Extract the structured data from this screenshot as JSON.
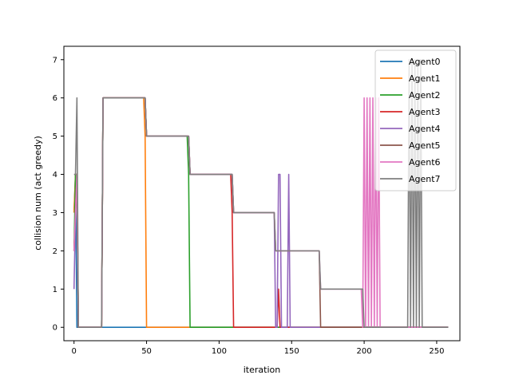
{
  "chart_data": {
    "type": "line",
    "title": "",
    "xlabel": "iteration",
    "ylabel": "collision num (act greedy)",
    "xlim": [
      -7,
      266
    ],
    "ylim": [
      -0.35,
      7.35
    ],
    "xticks": [
      0,
      50,
      100,
      150,
      200,
      250
    ],
    "yticks": [
      0,
      1,
      2,
      3,
      4,
      5,
      6,
      7
    ],
    "grid": false,
    "legend_position": "upper-right",
    "series": [
      {
        "name": "Agent0",
        "color": "#1f77b4",
        "x": [
          0,
          1,
          2,
          3,
          4,
          5,
          19,
          20,
          21,
          258
        ],
        "y": [
          3,
          4,
          0,
          0,
          0,
          0,
          0,
          0,
          0,
          0
        ]
      },
      {
        "name": "Agent1",
        "color": "#ff7f0e",
        "x": [
          0,
          1,
          2,
          3,
          4,
          19,
          20,
          48,
          49,
          50,
          51,
          258
        ],
        "y": [
          3,
          4,
          4,
          0,
          0,
          0,
          6,
          6,
          5,
          0,
          0,
          0
        ]
      },
      {
        "name": "Agent2",
        "color": "#2ca02c",
        "x": [
          0,
          1,
          2,
          3,
          4,
          19,
          20,
          48,
          49,
          50,
          78,
          79,
          80,
          81,
          258
        ],
        "y": [
          2,
          4,
          4,
          0,
          0,
          0,
          6,
          6,
          6,
          5,
          5,
          4,
          0,
          0,
          0
        ]
      },
      {
        "name": "Agent3",
        "color": "#d62728",
        "x": [
          0,
          1,
          2,
          3,
          4,
          19,
          20,
          48,
          49,
          50,
          78,
          79,
          80,
          108,
          109,
          110,
          111,
          139,
          140,
          141,
          142,
          143,
          258
        ],
        "y": [
          2,
          3,
          4,
          0,
          0,
          0,
          6,
          6,
          6,
          5,
          5,
          5,
          4,
          4,
          3,
          0,
          0,
          0,
          0,
          1,
          0,
          0,
          0
        ]
      },
      {
        "name": "Agent4",
        "color": "#9467bd",
        "x": [
          0,
          1,
          2,
          3,
          4,
          19,
          20,
          48,
          49,
          50,
          78,
          79,
          80,
          108,
          109,
          110,
          138,
          139,
          140,
          141,
          142,
          143,
          144,
          145,
          146,
          147,
          148,
          149,
          150,
          258
        ],
        "y": [
          1,
          3,
          4,
          0,
          0,
          0,
          6,
          6,
          6,
          5,
          5,
          5,
          4,
          4,
          4,
          3,
          3,
          0,
          0,
          4,
          4,
          0,
          0,
          0,
          0,
          0,
          4,
          0,
          0,
          0
        ]
      },
      {
        "name": "Agent5",
        "color": "#8c564b",
        "x": [
          0,
          1,
          2,
          3,
          4,
          19,
          20,
          48,
          49,
          50,
          78,
          79,
          80,
          108,
          109,
          110,
          138,
          139,
          140,
          141,
          142,
          143,
          145,
          146,
          148,
          149,
          150,
          168,
          169,
          170,
          171,
          258
        ],
        "y": [
          2,
          3,
          4,
          0,
          0,
          0,
          6,
          6,
          6,
          5,
          5,
          5,
          4,
          4,
          4,
          3,
          3,
          2,
          2,
          2,
          2,
          2,
          2,
          2,
          2,
          2,
          2,
          2,
          2,
          0,
          0,
          0
        ]
      },
      {
        "name": "Agent6",
        "color": "#e377c2",
        "x": [
          0,
          1,
          2,
          3,
          4,
          19,
          20,
          48,
          49,
          50,
          78,
          79,
          80,
          108,
          109,
          110,
          138,
          139,
          140,
          168,
          169,
          170,
          198,
          199,
          200,
          201,
          202,
          203,
          204,
          205,
          206,
          207,
          208,
          209,
          210,
          211,
          212,
          258
        ],
        "y": [
          2,
          3,
          4,
          0,
          0,
          0,
          6,
          6,
          6,
          5,
          5,
          5,
          4,
          4,
          4,
          3,
          3,
          2,
          2,
          2,
          2,
          1,
          1,
          0,
          6,
          0,
          6,
          0,
          6,
          0,
          6,
          0,
          6,
          0,
          6,
          0,
          0,
          0
        ]
      },
      {
        "name": "Agent7",
        "color": "#7f7f7f",
        "x": [
          0,
          1,
          2,
          3,
          4,
          19,
          20,
          48,
          49,
          50,
          78,
          79,
          80,
          108,
          109,
          110,
          138,
          139,
          140,
          168,
          169,
          170,
          198,
          199,
          200,
          229,
          230,
          231,
          232,
          233,
          234,
          235,
          236,
          237,
          238,
          239,
          240,
          258
        ],
        "y": [
          4,
          4,
          6,
          0,
          0,
          0,
          6,
          6,
          6,
          5,
          5,
          5,
          4,
          4,
          4,
          3,
          3,
          2,
          2,
          2,
          2,
          1,
          1,
          1,
          0,
          0,
          0,
          7,
          0,
          7,
          0,
          7,
          0,
          7,
          0,
          7,
          0,
          0
        ]
      }
    ]
  }
}
